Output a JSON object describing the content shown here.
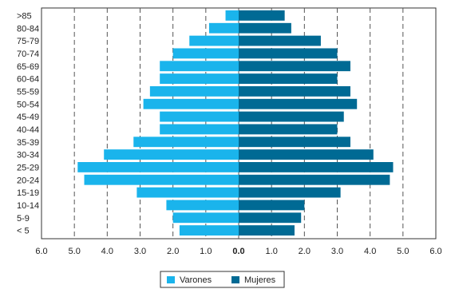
{
  "chart_data": {
    "type": "bar",
    "orientation": "horizontal",
    "layout": "population-pyramid",
    "categories": [
      ">85",
      "80-84",
      "75-79",
      "70-74",
      "65-69",
      "60-64",
      "55-59",
      "50-54",
      "45-49",
      "40-44",
      "35-39",
      "30-34",
      "25-29",
      "20-24",
      "15-19",
      "10-14",
      "5-9",
      "< 5"
    ],
    "series": [
      {
        "name": "Varones",
        "color": "#1AB4EC",
        "side": "left",
        "values": [
          0.4,
          0.9,
          1.5,
          2.0,
          2.4,
          2.4,
          2.7,
          2.9,
          2.4,
          2.4,
          3.2,
          4.1,
          4.9,
          4.7,
          3.1,
          2.2,
          2.0,
          1.8
        ]
      },
      {
        "name": "Mujeres",
        "color": "#006A94",
        "side": "right",
        "values": [
          1.4,
          1.6,
          2.5,
          3.0,
          3.4,
          3.0,
          3.4,
          3.6,
          3.2,
          3.0,
          3.4,
          4.1,
          4.7,
          4.6,
          3.1,
          2.0,
          1.9,
          1.7
        ]
      }
    ],
    "x_ticks": [
      "6.0",
      "5.0",
      "4.0",
      "3.0",
      "2.0",
      "1.0",
      "0.0",
      "1.0",
      "2.0",
      "3.0",
      "4.0",
      "5.0",
      "6.0"
    ],
    "xlim": [
      -6,
      6
    ],
    "grid": "vertical dashed",
    "legend_position": "bottom-center",
    "legend": [
      "Varones",
      "Mujeres"
    ]
  }
}
